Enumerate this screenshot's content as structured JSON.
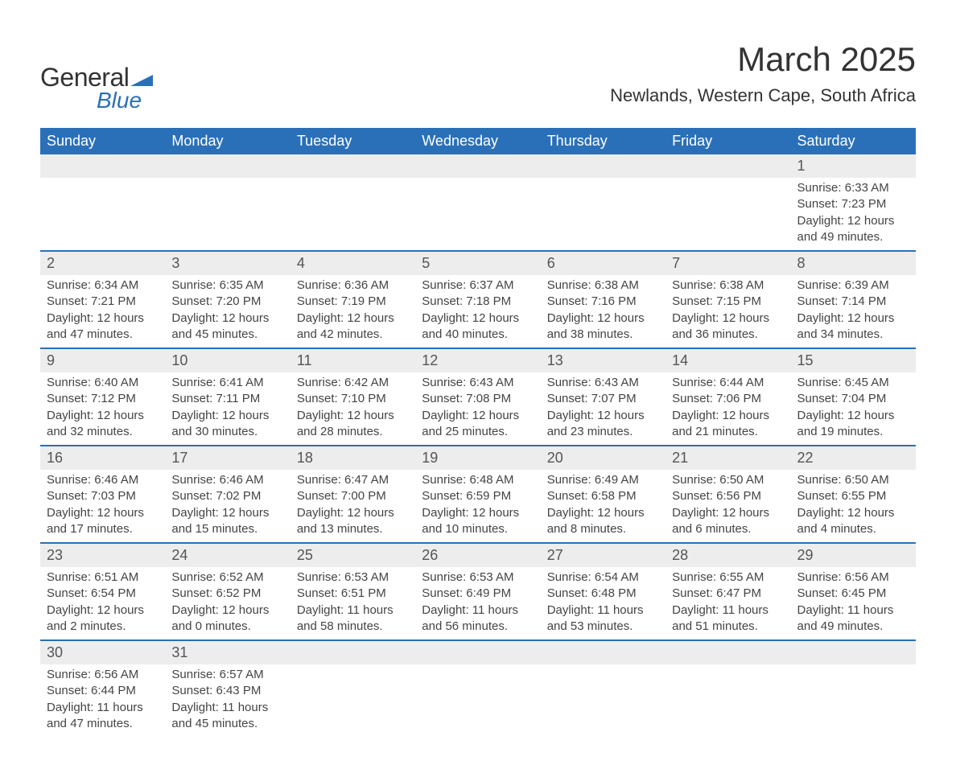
{
  "logo": {
    "word1": "General",
    "word2": "Blue",
    "shape_color": "#2a70b8"
  },
  "title": "March 2025",
  "location": "Newlands, Western Cape, South Africa",
  "colors": {
    "header_bg": "#2a70b8",
    "header_text": "#ffffff",
    "stripe_bg": "#ededed",
    "divider": "#2a70b8",
    "text": "#444444"
  },
  "day_headers": [
    "Sunday",
    "Monday",
    "Tuesday",
    "Wednesday",
    "Thursday",
    "Friday",
    "Saturday"
  ],
  "weeks": [
    [
      null,
      null,
      null,
      null,
      null,
      null,
      {
        "n": "1",
        "sunrise": "Sunrise: 6:33 AM",
        "sunset": "Sunset: 7:23 PM",
        "d1": "Daylight: 12 hours",
        "d2": "and 49 minutes."
      }
    ],
    [
      {
        "n": "2",
        "sunrise": "Sunrise: 6:34 AM",
        "sunset": "Sunset: 7:21 PM",
        "d1": "Daylight: 12 hours",
        "d2": "and 47 minutes."
      },
      {
        "n": "3",
        "sunrise": "Sunrise: 6:35 AM",
        "sunset": "Sunset: 7:20 PM",
        "d1": "Daylight: 12 hours",
        "d2": "and 45 minutes."
      },
      {
        "n": "4",
        "sunrise": "Sunrise: 6:36 AM",
        "sunset": "Sunset: 7:19 PM",
        "d1": "Daylight: 12 hours",
        "d2": "and 42 minutes."
      },
      {
        "n": "5",
        "sunrise": "Sunrise: 6:37 AM",
        "sunset": "Sunset: 7:18 PM",
        "d1": "Daylight: 12 hours",
        "d2": "and 40 minutes."
      },
      {
        "n": "6",
        "sunrise": "Sunrise: 6:38 AM",
        "sunset": "Sunset: 7:16 PM",
        "d1": "Daylight: 12 hours",
        "d2": "and 38 minutes."
      },
      {
        "n": "7",
        "sunrise": "Sunrise: 6:38 AM",
        "sunset": "Sunset: 7:15 PM",
        "d1": "Daylight: 12 hours",
        "d2": "and 36 minutes."
      },
      {
        "n": "8",
        "sunrise": "Sunrise: 6:39 AM",
        "sunset": "Sunset: 7:14 PM",
        "d1": "Daylight: 12 hours",
        "d2": "and 34 minutes."
      }
    ],
    [
      {
        "n": "9",
        "sunrise": "Sunrise: 6:40 AM",
        "sunset": "Sunset: 7:12 PM",
        "d1": "Daylight: 12 hours",
        "d2": "and 32 minutes."
      },
      {
        "n": "10",
        "sunrise": "Sunrise: 6:41 AM",
        "sunset": "Sunset: 7:11 PM",
        "d1": "Daylight: 12 hours",
        "d2": "and 30 minutes."
      },
      {
        "n": "11",
        "sunrise": "Sunrise: 6:42 AM",
        "sunset": "Sunset: 7:10 PM",
        "d1": "Daylight: 12 hours",
        "d2": "and 28 minutes."
      },
      {
        "n": "12",
        "sunrise": "Sunrise: 6:43 AM",
        "sunset": "Sunset: 7:08 PM",
        "d1": "Daylight: 12 hours",
        "d2": "and 25 minutes."
      },
      {
        "n": "13",
        "sunrise": "Sunrise: 6:43 AM",
        "sunset": "Sunset: 7:07 PM",
        "d1": "Daylight: 12 hours",
        "d2": "and 23 minutes."
      },
      {
        "n": "14",
        "sunrise": "Sunrise: 6:44 AM",
        "sunset": "Sunset: 7:06 PM",
        "d1": "Daylight: 12 hours",
        "d2": "and 21 minutes."
      },
      {
        "n": "15",
        "sunrise": "Sunrise: 6:45 AM",
        "sunset": "Sunset: 7:04 PM",
        "d1": "Daylight: 12 hours",
        "d2": "and 19 minutes."
      }
    ],
    [
      {
        "n": "16",
        "sunrise": "Sunrise: 6:46 AM",
        "sunset": "Sunset: 7:03 PM",
        "d1": "Daylight: 12 hours",
        "d2": "and 17 minutes."
      },
      {
        "n": "17",
        "sunrise": "Sunrise: 6:46 AM",
        "sunset": "Sunset: 7:02 PM",
        "d1": "Daylight: 12 hours",
        "d2": "and 15 minutes."
      },
      {
        "n": "18",
        "sunrise": "Sunrise: 6:47 AM",
        "sunset": "Sunset: 7:00 PM",
        "d1": "Daylight: 12 hours",
        "d2": "and 13 minutes."
      },
      {
        "n": "19",
        "sunrise": "Sunrise: 6:48 AM",
        "sunset": "Sunset: 6:59 PM",
        "d1": "Daylight: 12 hours",
        "d2": "and 10 minutes."
      },
      {
        "n": "20",
        "sunrise": "Sunrise: 6:49 AM",
        "sunset": "Sunset: 6:58 PM",
        "d1": "Daylight: 12 hours",
        "d2": "and 8 minutes."
      },
      {
        "n": "21",
        "sunrise": "Sunrise: 6:50 AM",
        "sunset": "Sunset: 6:56 PM",
        "d1": "Daylight: 12 hours",
        "d2": "and 6 minutes."
      },
      {
        "n": "22",
        "sunrise": "Sunrise: 6:50 AM",
        "sunset": "Sunset: 6:55 PM",
        "d1": "Daylight: 12 hours",
        "d2": "and 4 minutes."
      }
    ],
    [
      {
        "n": "23",
        "sunrise": "Sunrise: 6:51 AM",
        "sunset": "Sunset: 6:54 PM",
        "d1": "Daylight: 12 hours",
        "d2": "and 2 minutes."
      },
      {
        "n": "24",
        "sunrise": "Sunrise: 6:52 AM",
        "sunset": "Sunset: 6:52 PM",
        "d1": "Daylight: 12 hours",
        "d2": "and 0 minutes."
      },
      {
        "n": "25",
        "sunrise": "Sunrise: 6:53 AM",
        "sunset": "Sunset: 6:51 PM",
        "d1": "Daylight: 11 hours",
        "d2": "and 58 minutes."
      },
      {
        "n": "26",
        "sunrise": "Sunrise: 6:53 AM",
        "sunset": "Sunset: 6:49 PM",
        "d1": "Daylight: 11 hours",
        "d2": "and 56 minutes."
      },
      {
        "n": "27",
        "sunrise": "Sunrise: 6:54 AM",
        "sunset": "Sunset: 6:48 PM",
        "d1": "Daylight: 11 hours",
        "d2": "and 53 minutes."
      },
      {
        "n": "28",
        "sunrise": "Sunrise: 6:55 AM",
        "sunset": "Sunset: 6:47 PM",
        "d1": "Daylight: 11 hours",
        "d2": "and 51 minutes."
      },
      {
        "n": "29",
        "sunrise": "Sunrise: 6:56 AM",
        "sunset": "Sunset: 6:45 PM",
        "d1": "Daylight: 11 hours",
        "d2": "and 49 minutes."
      }
    ],
    [
      {
        "n": "30",
        "sunrise": "Sunrise: 6:56 AM",
        "sunset": "Sunset: 6:44 PM",
        "d1": "Daylight: 11 hours",
        "d2": "and 47 minutes."
      },
      {
        "n": "31",
        "sunrise": "Sunrise: 6:57 AM",
        "sunset": "Sunset: 6:43 PM",
        "d1": "Daylight: 11 hours",
        "d2": "and 45 minutes."
      },
      null,
      null,
      null,
      null,
      null
    ]
  ]
}
